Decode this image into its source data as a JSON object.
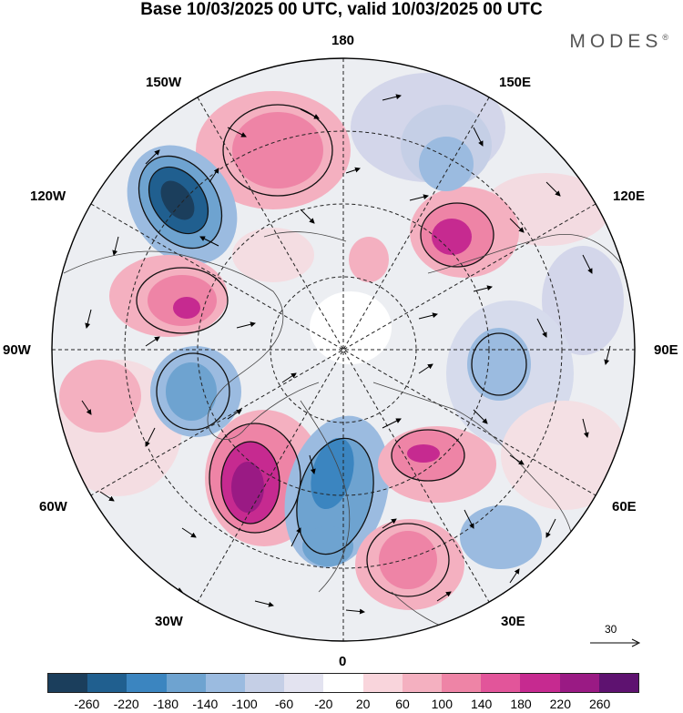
{
  "title": "Base 10/03/2025 00 UTC, valid 10/03/2025 00 UTC",
  "brand": "MODES",
  "brand_mark": "®",
  "longitude_labels": {
    "top": "180",
    "bottom": "0",
    "left": "90W",
    "right": "90E",
    "upper_left_1": "150W",
    "upper_left_2": "120W",
    "lower_left_1": "60W",
    "lower_left_2": "30W",
    "upper_right_1": "150E",
    "upper_right_2": "120E",
    "lower_right_1": "60E",
    "lower_right_2": "30E"
  },
  "reference_vector": {
    "label": "30"
  },
  "colorbar": {
    "colors": [
      "#1b3e5c",
      "#205f8f",
      "#3b85c0",
      "#6ea3d0",
      "#9bbbe0",
      "#c5cfe6",
      "#e3e3f0",
      "#ffffff",
      "#f9d5dc",
      "#f4b0c0",
      "#ee84a6",
      "#e2559a",
      "#c62a90",
      "#9a1a84",
      "#5e1270"
    ],
    "ticks": [
      "-260",
      "-220",
      "-180",
      "-140",
      "-100",
      "-60",
      "-20",
      "20",
      "60",
      "100",
      "140",
      "180",
      "220",
      "260"
    ]
  }
}
